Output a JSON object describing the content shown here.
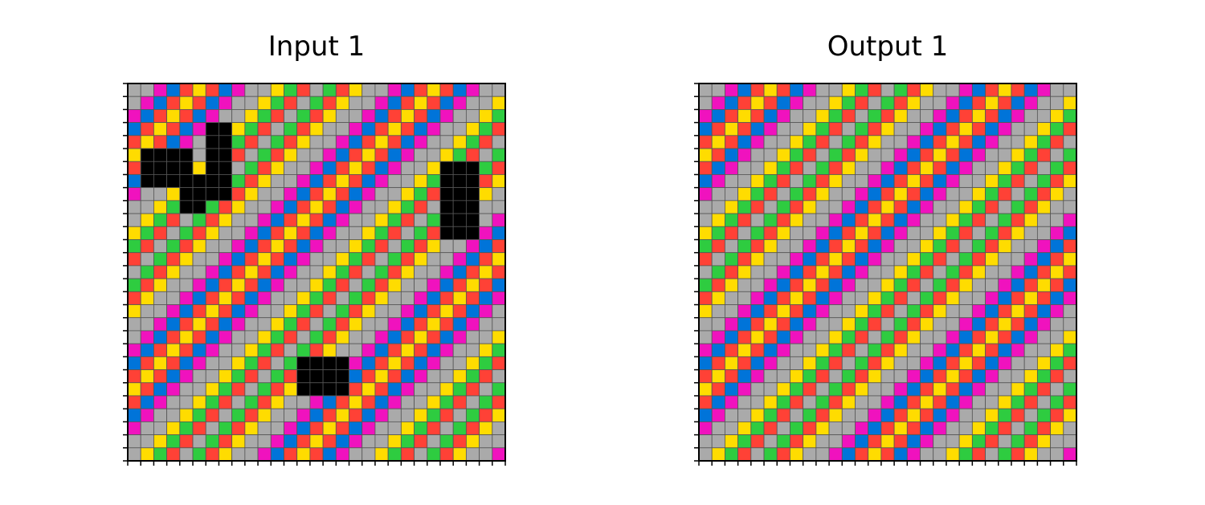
{
  "panels": [
    {
      "id": "input",
      "title": "Input 1"
    },
    {
      "id": "output",
      "title": "Output 1"
    }
  ],
  "grid": {
    "rows": 29,
    "cols": 29,
    "palette": [
      "#0074D9",
      "#FF4136",
      "#2ECC40",
      "#FFDC00",
      "#AAAAAA",
      "#F012BE"
    ],
    "pattern_sequence": [
      4,
      4,
      5,
      0,
      1,
      3,
      1,
      0,
      5,
      4,
      4,
      3,
      2,
      1,
      4,
      2,
      1,
      3
    ]
  },
  "masks": [
    {
      "r0": 5,
      "r1": 7,
      "c0": 1,
      "c1": 4
    },
    {
      "r0": 7,
      "r1": 8,
      "c0": 4,
      "c1": 7
    },
    {
      "r0": 9,
      "r1": 9,
      "c0": 4,
      "c1": 5
    },
    {
      "r0": 3,
      "r1": 6,
      "c0": 6,
      "c1": 7
    },
    {
      "r0": 6,
      "r1": 11,
      "c0": 24,
      "c1": 26
    },
    {
      "r0": 21,
      "r1": 23,
      "c0": 13,
      "c1": 16
    }
  ],
  "colors": {
    "mask": "#000000",
    "cell_border": "#555555",
    "frame": "#000000"
  }
}
